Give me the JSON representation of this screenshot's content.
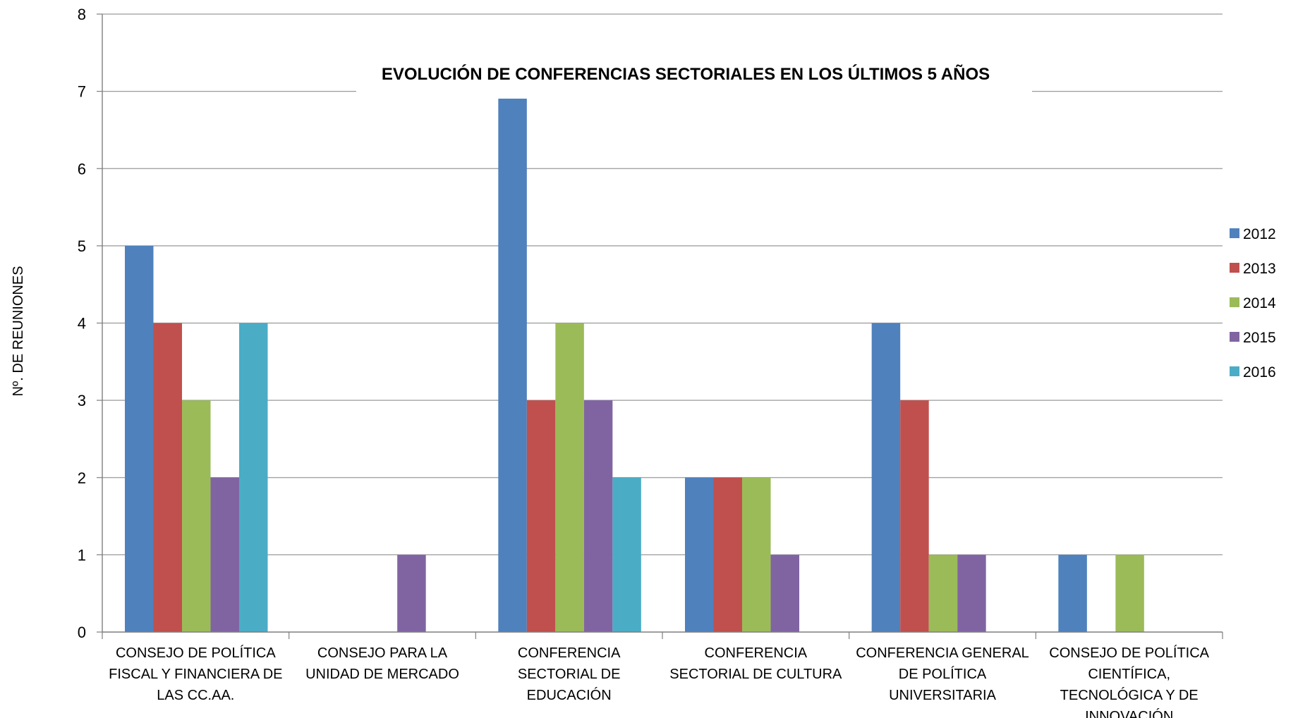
{
  "chart_data": {
    "type": "bar",
    "title": "EVOLUCIÓN DE CONFERENCIAS SECTORIALES EN LOS ÚLTIMOS 5 AÑOS",
    "ylabel": "Nº.  DE  REUNIONES",
    "xlabel": "",
    "ylim": [
      0,
      8
    ],
    "yticks": [
      0,
      1,
      2,
      3,
      4,
      5,
      6,
      7,
      8
    ],
    "grid": true,
    "legend_position": "right",
    "categories": [
      [
        "CONSEJO DE POLÍTICA",
        "FISCAL Y  FINANCIERA DE",
        "LAS CC.AA."
      ],
      [
        "CONSEJO PARA LA",
        "UNIDAD DE MERCADO"
      ],
      [
        "CONFERENCIA",
        "SECTORIAL DE",
        "EDUCACIÓN"
      ],
      [
        "CONFERENCIA",
        "SECTORIAL DE CULTURA"
      ],
      [
        "CONFERENCIA GENERAL",
        "DE POLÍTICA",
        "UNIVERSITARIA"
      ],
      [
        "CONSEJO DE POLÍTICA",
        "CIENTÍFICA,",
        "TECNOLÓGICA Y DE",
        "INNOVACIÓN"
      ]
    ],
    "series": [
      {
        "name": "2012",
        "color": "#4F81BD",
        "values": [
          5,
          0,
          7,
          2,
          4,
          1
        ]
      },
      {
        "name": "2013",
        "color": "#C0504D",
        "values": [
          4,
          0,
          3,
          2,
          3,
          0
        ]
      },
      {
        "name": "2014",
        "color": "#9BBB59",
        "values": [
          3,
          0,
          4,
          2,
          1,
          1
        ]
      },
      {
        "name": "2015",
        "color": "#8064A2",
        "values": [
          2,
          1,
          3,
          1,
          1,
          0
        ]
      },
      {
        "name": "2016",
        "color": "#4BACC6",
        "values": [
          4,
          0,
          2,
          0,
          0,
          0
        ]
      }
    ]
  }
}
